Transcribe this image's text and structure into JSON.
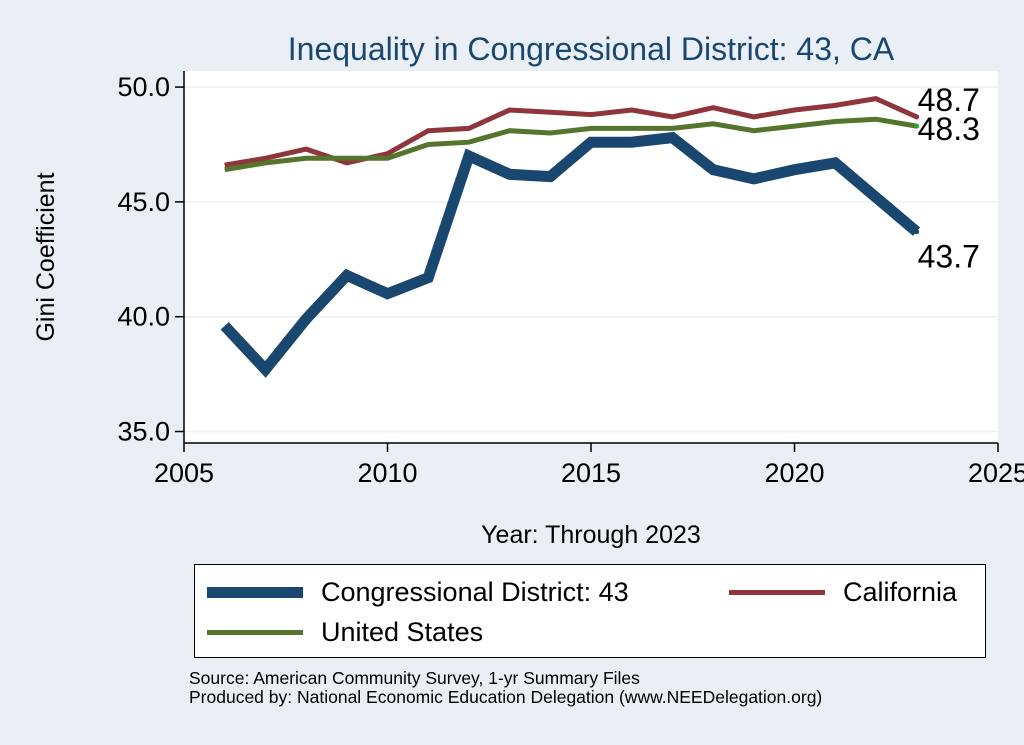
{
  "chart_data": {
    "type": "line",
    "title": "Inequality in Congressional District:  43, CA",
    "xlabel": "Year: Through 2023",
    "ylabel": "Gini Coefficient",
    "xlim": [
      2005,
      2025
    ],
    "ylim": [
      34.5,
      50.7
    ],
    "xticks": [
      2005,
      2010,
      2015,
      2020,
      2025
    ],
    "yticks": [
      35.0,
      40.0,
      45.0,
      50.0
    ],
    "grid": true,
    "x": [
      2006,
      2007,
      2008,
      2009,
      2010,
      2011,
      2012,
      2013,
      2014,
      2015,
      2016,
      2017,
      2018,
      2019,
      2020,
      2021,
      2022,
      2023
    ],
    "series": [
      {
        "name": "Congressional District:  43",
        "color": "#1a476f",
        "values": [
          39.6,
          37.7,
          39.9,
          41.8,
          41.0,
          41.7,
          47.0,
          46.2,
          46.1,
          47.6,
          47.6,
          47.8,
          46.4,
          46.0,
          46.4,
          46.7,
          45.2,
          43.7
        ],
        "end_label": "43.7"
      },
      {
        "name": "California",
        "color": "#90353b",
        "values": [
          46.6,
          46.9,
          47.3,
          46.7,
          47.1,
          48.1,
          48.2,
          49.0,
          48.9,
          48.8,
          49.0,
          48.7,
          49.1,
          48.7,
          49.0,
          49.2,
          49.5,
          48.7
        ],
        "end_label": "48.7"
      },
      {
        "name": "United States",
        "color": "#55752f",
        "values": [
          46.4,
          46.7,
          46.9,
          46.9,
          46.9,
          47.5,
          47.6,
          48.1,
          48.0,
          48.2,
          48.2,
          48.2,
          48.4,
          48.1,
          48.3,
          48.5,
          48.6,
          48.3
        ],
        "end_label": "48.3"
      }
    ],
    "legend": "bottom"
  },
  "source": {
    "line1": "Source: American Community Survey, 1-yr Summary Files",
    "line2": "Produced by: National Economic Education Delegation (www.NEEDelegation.org)"
  }
}
